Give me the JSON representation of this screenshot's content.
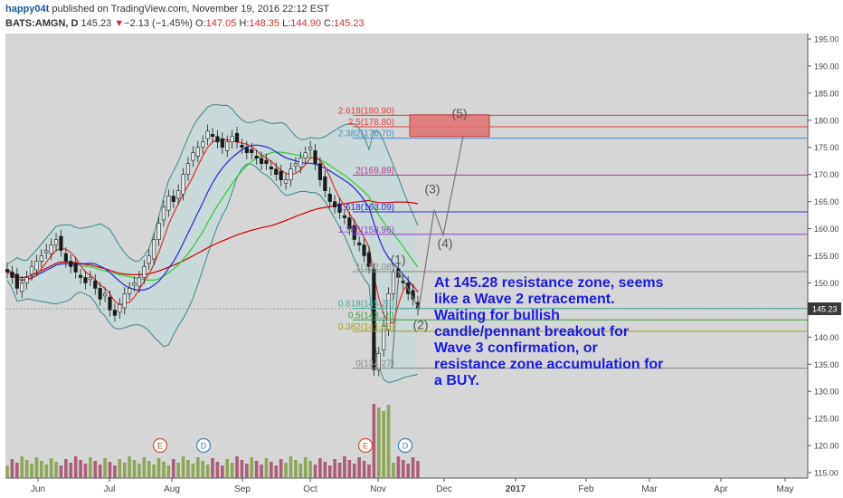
{
  "header": {
    "author": "happy04t",
    "published": "published on TradingView.com, November 19, 2016 22:12 EST",
    "symbol": "BATS:AMGN, D",
    "last": "145.23",
    "arrow": "▼",
    "change": "−2.13 (−1.45%)",
    "o_label": "O:",
    "o_value": "147.05",
    "h_label": "H:",
    "h_value": "148.35",
    "l_label": "L:",
    "l_value": "144.90",
    "c_label": "C:",
    "c_value": "145.23"
  },
  "colors": {
    "background": "#d6d6d6",
    "candle_up": "#3d3d3d",
    "candle_down": "#1a1a1a",
    "bollinger_fill": "#c5d8d8",
    "bollinger_line": "#3d8a8a",
    "ma_red": "#e0302a",
    "ma_blue": "#2a2ad0",
    "ma_green": "#33cc33",
    "ma_darkred": "#cc0000",
    "annotation_text": "#1a1ae6",
    "target_box": "#e07070",
    "price_tag": "#3a3a3a"
  },
  "chart_data": {
    "type": "candlestick",
    "symbol": "BATS:AMGN",
    "timeframe": "D",
    "ylim": [
      114,
      196
    ],
    "y_ticks": [
      "115.00",
      "120.00",
      "125.00",
      "130.00",
      "135.00",
      "140.00",
      "145.00",
      "150.00",
      "155.00",
      "160.00",
      "165.00",
      "170.00",
      "175.00",
      "180.00",
      "185.00",
      "190.00",
      "195.00"
    ],
    "x_ticks": [
      "Jun",
      "Jul",
      "Aug",
      "Sep",
      "Oct",
      "Nov",
      "Dec",
      "2017",
      "Feb",
      "Mar",
      "Apr",
      "May"
    ],
    "last_price": "145.23",
    "closes": [
      152,
      151,
      149,
      150,
      151,
      153,
      154,
      155,
      156,
      157,
      158,
      156,
      154,
      153,
      152,
      151,
      150,
      151,
      149,
      147,
      148,
      145,
      144,
      146,
      148,
      149,
      150,
      151,
      153,
      155,
      158,
      161,
      164,
      166,
      165,
      167,
      170,
      172,
      174,
      175,
      176,
      178,
      177,
      176,
      175,
      176,
      177,
      176,
      175,
      174,
      174,
      173,
      172,
      172,
      171,
      170,
      169,
      169,
      171,
      172,
      173,
      174,
      175,
      172,
      169,
      167,
      165,
      164,
      163,
      162,
      160,
      158,
      157,
      155,
      153,
      134,
      137,
      142,
      148,
      152,
      151,
      150,
      148,
      147,
      145.23
    ],
    "fib_levels": [
      {
        "label": "2.618(180.90)",
        "value": 180.9,
        "color": "#e04040"
      },
      {
        "label": "2.5(178.80)",
        "value": 178.8,
        "color": "#e04040"
      },
      {
        "label": "2.382(176.70)",
        "value": 176.7,
        "color": "#4a8fc8"
      },
      {
        "label": "2(169.89)",
        "value": 169.89,
        "color": "#b03a90"
      },
      {
        "label": "1.618(163.09)",
        "value": 163.09,
        "color": "#2a2ad0"
      },
      {
        "label": "1.386(158.96)",
        "value": 158.96,
        "color": "#9040c0"
      },
      {
        "label": "1(152.08)",
        "value": 152.08,
        "color": "#888888"
      },
      {
        "label": "0.618(145.29)",
        "value": 145.29,
        "color": "#40b0a0"
      },
      {
        "label": "0.5(143.18)",
        "value": 143.18,
        "color": "#40a040"
      },
      {
        "label": "0.382(141.08)",
        "value": 141.08,
        "color": "#a0a020"
      },
      {
        "label": "0(134.27)",
        "value": 134.27,
        "color": "#888888"
      }
    ],
    "wave_labels": [
      "(1)",
      "(2)",
      "(3)",
      "(4)",
      "(5)"
    ],
    "events": [
      "E",
      "D",
      "E",
      "D"
    ]
  },
  "annotation": {
    "lines": [
      "At 145.28 resistance zone, seems",
      "like a Wave 2 retracement.",
      "Waiting for bullish",
      "candle/pennant breakout for",
      "Wave 3 confirmation, or",
      "resistance zone accumulation for",
      "a BUY."
    ]
  }
}
